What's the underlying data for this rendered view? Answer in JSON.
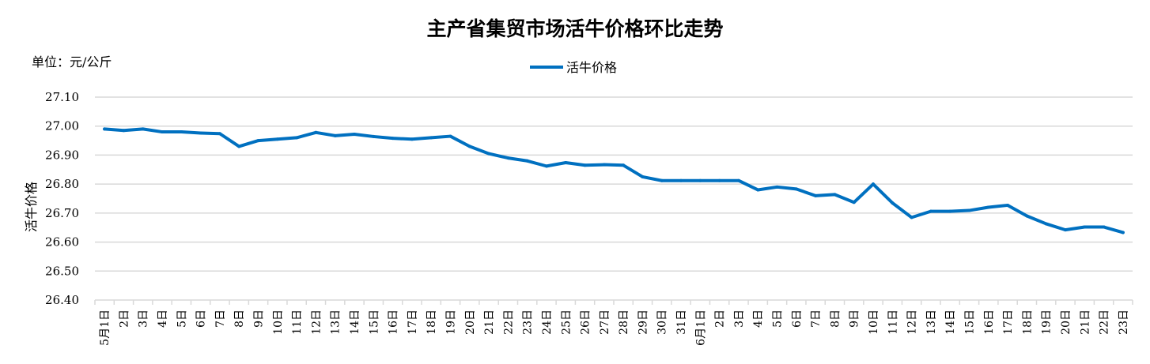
{
  "chart_data": {
    "type": "line",
    "title": "主产省集贸市场活牛价格环比走势",
    "unit_label": "单位：元/公斤",
    "ylabel": "活牛价格",
    "xlabel": "",
    "ylim": [
      26.4,
      27.1
    ],
    "yticks": [
      "26.40",
      "26.50",
      "26.60",
      "26.70",
      "26.80",
      "26.90",
      "27.00",
      "27.10"
    ],
    "grid": true,
    "legend_position": "top",
    "categories": [
      "5月1日",
      "2日",
      "3日",
      "4日",
      "5日",
      "6日",
      "7日",
      "8日",
      "9日",
      "10日",
      "11日",
      "12日",
      "13日",
      "14日",
      "15日",
      "16日",
      "17日",
      "18日",
      "19日",
      "20日",
      "21日",
      "22日",
      "23日",
      "24日",
      "25日",
      "26日",
      "27日",
      "28日",
      "29日",
      "30日",
      "31日",
      "6月1日",
      "2日",
      "3日",
      "4日",
      "5日",
      "6日",
      "7日",
      "8日",
      "9日",
      "10日",
      "11日",
      "12日",
      "13日",
      "14日",
      "15日",
      "16日",
      "17日",
      "18日",
      "19日",
      "20日",
      "21日",
      "22日",
      "23日"
    ],
    "series": [
      {
        "name": "活牛价格",
        "color": "#0070C0",
        "values": [
          26.99,
          26.985,
          26.99,
          26.98,
          26.98,
          26.976,
          26.974,
          26.93,
          26.95,
          26.955,
          26.96,
          26.978,
          26.967,
          26.972,
          26.964,
          26.958,
          26.955,
          26.96,
          26.965,
          26.93,
          26.905,
          26.89,
          26.88,
          26.862,
          26.874,
          26.865,
          26.867,
          26.865,
          26.825,
          26.812,
          26.812,
          26.812,
          26.812,
          26.812,
          26.78,
          26.79,
          26.783,
          26.76,
          26.764,
          26.737,
          26.8,
          26.735,
          26.685,
          26.706,
          26.706,
          26.709,
          26.72,
          26.727,
          26.69,
          26.663,
          26.642,
          26.652,
          26.652,
          26.633
        ]
      }
    ]
  }
}
